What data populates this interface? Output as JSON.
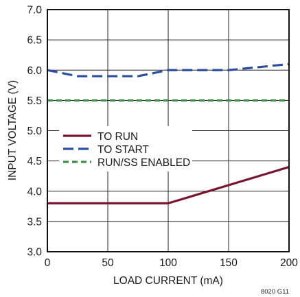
{
  "chart_data": {
    "type": "line",
    "xlabel": "LOAD CURRENT (mA)",
    "ylabel": "INPUT VOLTAGE (V)",
    "xlim": [
      0,
      200
    ],
    "ylim": [
      3.0,
      7.0
    ],
    "x_ticks": [
      "0",
      "50",
      "100",
      "150",
      "200"
    ],
    "y_ticks": [
      "3.0",
      "3.5",
      "4.0",
      "4.5",
      "5.0",
      "5.5",
      "6.0",
      "6.5",
      "7.0"
    ],
    "grid": true,
    "legend_position": "center-left",
    "figure_id": "8020 G11",
    "series": [
      {
        "name": "TO RUN",
        "color": "#7a1530",
        "dash": "solid",
        "points": [
          [
            0,
            3.8
          ],
          [
            100,
            3.8
          ],
          [
            200,
            4.4
          ]
        ]
      },
      {
        "name": "TO START",
        "color": "#2b4ea0",
        "dash": "long-dash",
        "points": [
          [
            0,
            6.0
          ],
          [
            25,
            5.9
          ],
          [
            75,
            5.9
          ],
          [
            100,
            6.0
          ],
          [
            150,
            6.0
          ],
          [
            200,
            6.1
          ]
        ]
      },
      {
        "name": "RUN/SS ENABLED",
        "color": "#3e8f4a",
        "dash": "short-dash",
        "points": [
          [
            0,
            5.5
          ],
          [
            200,
            5.5
          ]
        ]
      }
    ]
  }
}
